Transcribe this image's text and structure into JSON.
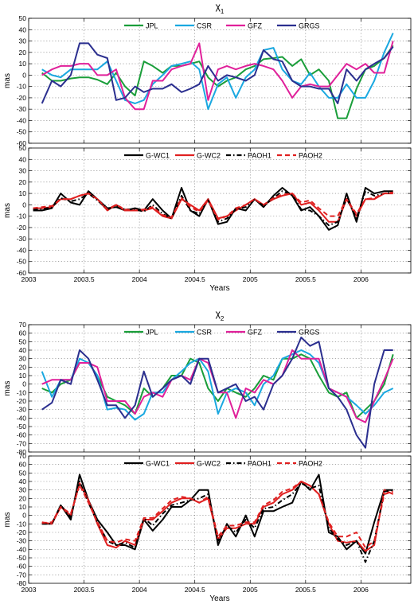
{
  "chart_data": [
    {
      "type": "line",
      "title": "χ1",
      "xlabel": "",
      "ylabel": "mas",
      "xlim": [
        2003.0,
        2006.45
      ],
      "ylim": [
        -60,
        50
      ],
      "yticks": [
        -60,
        -50,
        -40,
        -30,
        -20,
        -10,
        0,
        10,
        20,
        30,
        40,
        50
      ],
      "xticks": [
        2003,
        2003.5,
        2004,
        2004.5,
        2005,
        2005.5,
        2006
      ],
      "xticklabels": [
        "2003",
        "2003.5",
        "2004",
        "2004.5",
        "2005",
        "2005.5",
        "2006"
      ],
      "show_xticklabels": false,
      "grid": true,
      "legend": "top",
      "x": [
        2003.12,
        2003.21,
        2003.29,
        2003.38,
        2003.46,
        2003.54,
        2003.62,
        2003.71,
        2003.79,
        2003.87,
        2003.96,
        2004.04,
        2004.12,
        2004.21,
        2004.29,
        2004.38,
        2004.46,
        2004.54,
        2004.62,
        2004.71,
        2004.79,
        2004.87,
        2004.96,
        2005.04,
        2005.12,
        2005.21,
        2005.29,
        2005.38,
        2005.46,
        2005.54,
        2005.62,
        2005.71,
        2005.79,
        2005.87,
        2005.96,
        2006.04,
        2006.12,
        2006.21,
        2006.29
      ],
      "series": [
        {
          "name": "JPL",
          "color": "#1a9e3a",
          "dash": "",
          "values": [
            2,
            -5,
            -5,
            -3,
            -2,
            -2,
            -4,
            -8,
            2,
            -10,
            -18,
            12,
            8,
            2,
            8,
            8,
            10,
            12,
            -2,
            -10,
            -5,
            -2,
            5,
            8,
            14,
            15,
            16,
            8,
            14,
            0,
            5,
            -5,
            -38,
            -38,
            -12,
            5,
            8,
            15,
            26
          ]
        },
        {
          "name": "CSR",
          "color": "#1aa8e0",
          "dash": "",
          "values": [
            5,
            0,
            -2,
            5,
            5,
            5,
            5,
            12,
            -5,
            -22,
            -25,
            -22,
            -8,
            0,
            8,
            10,
            12,
            5,
            -30,
            -8,
            -2,
            -20,
            -2,
            5,
            22,
            24,
            5,
            -5,
            -8,
            2,
            -10,
            -20,
            -20,
            -8,
            -20,
            -20,
            -5,
            20,
            37
          ]
        },
        {
          "name": "GFZ",
          "color": "#e0209a",
          "dash": "",
          "values": [
            0,
            5,
            8,
            8,
            10,
            10,
            0,
            0,
            5,
            -20,
            -30,
            -30,
            -5,
            -5,
            5,
            8,
            10,
            28,
            -22,
            5,
            8,
            5,
            8,
            10,
            8,
            5,
            -5,
            -20,
            -10,
            -8,
            -10,
            -10,
            0,
            10,
            5,
            10,
            2,
            2,
            30
          ]
        },
        {
          "name": "GRGS",
          "color": "#2b2f8f",
          "dash": "",
          "values": [
            -25,
            -5,
            -10,
            0,
            28,
            28,
            18,
            15,
            -22,
            -20,
            -10,
            -15,
            -12,
            -12,
            -8,
            -15,
            -12,
            -8,
            8,
            -5,
            0,
            -2,
            -5,
            0,
            22,
            14,
            12,
            -5,
            -10,
            -10,
            -12,
            -12,
            -25,
            5,
            -5,
            5,
            10,
            15,
            25
          ]
        }
      ]
    },
    {
      "type": "line",
      "title": "",
      "xlabel": "Years",
      "ylabel": "mas",
      "xlim": [
        2003.0,
        2006.45
      ],
      "ylim": [
        -60,
        50
      ],
      "yticks": [
        -60,
        -50,
        -40,
        -30,
        -20,
        -10,
        0,
        10,
        20,
        30,
        40,
        50
      ],
      "xticks": [
        2003,
        2003.5,
        2004,
        2004.5,
        2005,
        2005.5,
        2006
      ],
      "xticklabels": [
        "2003",
        "2003.5",
        "2004",
        "2004.5",
        "2005",
        "2005.5",
        "2006"
      ],
      "show_xticklabels": true,
      "grid": true,
      "legend": "top",
      "x": [
        2003.04,
        2003.12,
        2003.21,
        2003.29,
        2003.38,
        2003.46,
        2003.54,
        2003.62,
        2003.71,
        2003.79,
        2003.87,
        2003.96,
        2004.04,
        2004.12,
        2004.21,
        2004.29,
        2004.38,
        2004.46,
        2004.54,
        2004.62,
        2004.71,
        2004.79,
        2004.87,
        2004.96,
        2005.04,
        2005.12,
        2005.21,
        2005.29,
        2005.38,
        2005.46,
        2005.54,
        2005.62,
        2005.71,
        2005.79,
        2005.87,
        2005.96,
        2006.04,
        2006.12,
        2006.21,
        2006.29
      ],
      "series": [
        {
          "name": "G-WC1",
          "color": "#000000",
          "dash": "",
          "values": [
            -5,
            -5,
            -3,
            10,
            2,
            0,
            12,
            5,
            -3,
            -2,
            -5,
            -3,
            -5,
            5,
            -5,
            -12,
            15,
            -5,
            -10,
            5,
            -17,
            -15,
            -3,
            -5,
            5,
            -2,
            8,
            15,
            8,
            -5,
            -2,
            -10,
            -22,
            -18,
            10,
            -15,
            15,
            10,
            12,
            12
          ]
        },
        {
          "name": "G-WC2",
          "color": "#e02020",
          "dash": "",
          "values": [
            -3,
            -3,
            -2,
            5,
            5,
            8,
            10,
            5,
            -5,
            0,
            -5,
            -5,
            -5,
            -3,
            -10,
            -12,
            5,
            0,
            -5,
            5,
            -12,
            -10,
            -5,
            0,
            5,
            0,
            5,
            8,
            10,
            0,
            2,
            -5,
            -15,
            -15,
            5,
            -10,
            5,
            5,
            10,
            10
          ]
        },
        {
          "name": "PAOH1",
          "color": "#000000",
          "dash": "6,3,1.5,3",
          "values": [
            -4,
            -4,
            -2,
            6,
            3,
            5,
            10,
            4,
            -4,
            -1,
            -4,
            -4,
            -6,
            0,
            -8,
            -12,
            8,
            -5,
            -8,
            4,
            -15,
            -12,
            -4,
            -2,
            5,
            -1,
            6,
            12,
            9,
            -4,
            -5,
            -10,
            -18,
            -15,
            6,
            -12,
            12,
            8,
            10,
            11
          ]
        },
        {
          "name": "PAOH2",
          "color": "#e02020",
          "dash": "6,4",
          "values": [
            -3,
            -2,
            -1,
            5,
            5,
            8,
            10,
            5,
            -4,
            0,
            -4,
            -5,
            -4,
            -2,
            -9,
            -11,
            6,
            -2,
            -6,
            4,
            -13,
            -10,
            -3,
            0,
            5,
            0,
            6,
            9,
            10,
            2,
            4,
            -3,
            -10,
            -10,
            5,
            -8,
            5,
            6,
            10,
            11
          ]
        }
      ]
    },
    {
      "type": "line",
      "title": "χ2",
      "xlabel": "",
      "ylabel": "mas",
      "xlim": [
        2003.0,
        2006.45
      ],
      "ylim": [
        -80,
        70
      ],
      "yticks": [
        -80,
        -70,
        -60,
        -50,
        -40,
        -30,
        -20,
        -10,
        0,
        10,
        20,
        30,
        40,
        50,
        60,
        70
      ],
      "xticks": [
        2003,
        2003.5,
        2004,
        2004.5,
        2005,
        2005.5,
        2006
      ],
      "xticklabels": [
        "2003",
        "2003.5",
        "2004",
        "2004.5",
        "2005",
        "2005.5",
        "2006"
      ],
      "show_xticklabels": false,
      "grid": true,
      "legend": "top",
      "x": [
        2003.12,
        2003.21,
        2003.29,
        2003.38,
        2003.46,
        2003.54,
        2003.62,
        2003.71,
        2003.79,
        2003.87,
        2003.96,
        2004.04,
        2004.12,
        2004.21,
        2004.29,
        2004.38,
        2004.46,
        2004.54,
        2004.62,
        2004.71,
        2004.79,
        2004.87,
        2004.96,
        2005.04,
        2005.12,
        2005.21,
        2005.29,
        2005.38,
        2005.46,
        2005.54,
        2005.62,
        2005.71,
        2005.79,
        2005.87,
        2005.96,
        2006.04,
        2006.12,
        2006.21,
        2006.29
      ],
      "series": [
        {
          "name": "JPL",
          "color": "#1a9e3a",
          "dash": "",
          "values": [
            -5,
            -10,
            0,
            5,
            25,
            25,
            10,
            -15,
            -20,
            -25,
            -35,
            -5,
            -15,
            -5,
            10,
            10,
            30,
            25,
            -5,
            -20,
            -5,
            -10,
            -15,
            -5,
            10,
            5,
            30,
            30,
            35,
            30,
            10,
            -10,
            -15,
            -10,
            -40,
            -30,
            -20,
            0,
            35
          ]
        },
        {
          "name": "CSR",
          "color": "#1aa8e0",
          "dash": "",
          "values": [
            15,
            -15,
            5,
            5,
            30,
            25,
            10,
            -30,
            -28,
            -30,
            -42,
            -35,
            -10,
            -10,
            5,
            15,
            25,
            30,
            15,
            -35,
            -10,
            -5,
            -10,
            -25,
            0,
            10,
            30,
            35,
            40,
            35,
            25,
            -5,
            -10,
            -15,
            -25,
            -35,
            -25,
            -10,
            -5
          ]
        },
        {
          "name": "GFZ",
          "color": "#e0209a",
          "dash": "",
          "values": [
            0,
            5,
            5,
            5,
            25,
            25,
            20,
            -20,
            -20,
            -20,
            -35,
            -15,
            -10,
            -15,
            5,
            10,
            5,
            30,
            25,
            -10,
            -10,
            -40,
            -5,
            -10,
            5,
            0,
            10,
            40,
            30,
            30,
            30,
            -5,
            -10,
            -15,
            -40,
            -45,
            -20,
            5,
            30
          ]
        },
        {
          "name": "GRGS",
          "color": "#2b2f8f",
          "dash": "",
          "values": [
            -30,
            -22,
            5,
            0,
            40,
            30,
            5,
            -25,
            -25,
            -40,
            -25,
            15,
            -15,
            -5,
            5,
            10,
            0,
            30,
            30,
            -10,
            -5,
            0,
            -20,
            -15,
            -30,
            0,
            10,
            30,
            55,
            45,
            50,
            -5,
            -15,
            -30,
            -60,
            -75,
            0,
            40,
            40
          ]
        }
      ]
    },
    {
      "type": "line",
      "title": "",
      "xlabel": "Years",
      "ylabel": "mas",
      "xlim": [
        2003.0,
        2006.45
      ],
      "ylim": [
        -80,
        70
      ],
      "yticks": [
        -80,
        -70,
        -60,
        -50,
        -40,
        -30,
        -20,
        -10,
        0,
        10,
        20,
        30,
        40,
        50,
        60,
        70
      ],
      "xticks": [
        2003,
        2003.5,
        2004,
        2004.5,
        2005,
        2005.5,
        2006
      ],
      "xticklabels": [
        "2003",
        "2003.5",
        "2004",
        "2004.5",
        "2005",
        "2005.5",
        "2006"
      ],
      "show_xticklabels": true,
      "grid": true,
      "legend": "top",
      "x": [
        2003.12,
        2003.21,
        2003.29,
        2003.38,
        2003.46,
        2003.54,
        2003.62,
        2003.71,
        2003.79,
        2003.87,
        2003.96,
        2004.04,
        2004.12,
        2004.21,
        2004.29,
        2004.38,
        2004.46,
        2004.54,
        2004.62,
        2004.71,
        2004.79,
        2004.87,
        2004.96,
        2005.04,
        2005.12,
        2005.21,
        2005.29,
        2005.38,
        2005.46,
        2005.54,
        2005.62,
        2005.71,
        2005.79,
        2005.87,
        2005.96,
        2006.04,
        2006.12,
        2006.21,
        2006.29
      ],
      "series": [
        {
          "name": "G-WC1",
          "color": "#000000",
          "dash": "",
          "values": [
            -10,
            -10,
            12,
            -5,
            48,
            18,
            -5,
            -20,
            -35,
            -35,
            -40,
            -5,
            -18,
            -5,
            10,
            10,
            18,
            30,
            30,
            -35,
            -10,
            -25,
            0,
            -25,
            5,
            5,
            10,
            15,
            40,
            30,
            48,
            -20,
            -25,
            -40,
            -30,
            -45,
            -8,
            30,
            30
          ]
        },
        {
          "name": "G-WC2",
          "color": "#e02020",
          "dash": "",
          "values": [
            -8,
            -10,
            10,
            0,
            38,
            18,
            -10,
            -35,
            -38,
            -30,
            -35,
            -5,
            -5,
            5,
            15,
            20,
            20,
            15,
            20,
            -28,
            -15,
            -15,
            -10,
            -10,
            10,
            15,
            25,
            30,
            40,
            35,
            25,
            -10,
            -30,
            -32,
            -30,
            -42,
            -35,
            30,
            25
          ]
        },
        {
          "name": "PAOH1",
          "color": "#000000",
          "dash": "6,3,1.5,3",
          "values": [
            -10,
            -10,
            12,
            -2,
            40,
            15,
            -8,
            -30,
            -35,
            -32,
            -38,
            -3,
            -12,
            2,
            12,
            15,
            18,
            20,
            25,
            -30,
            -12,
            -20,
            -5,
            -15,
            8,
            10,
            18,
            25,
            38,
            32,
            35,
            -15,
            -28,
            -35,
            -30,
            -55,
            -30,
            28,
            30
          ]
        },
        {
          "name": "PAOH2",
          "color": "#e02020",
          "dash": "6,4",
          "values": [
            -9,
            -8,
            10,
            2,
            36,
            15,
            -8,
            -30,
            -32,
            -28,
            -30,
            -3,
            -3,
            8,
            18,
            22,
            20,
            15,
            22,
            -25,
            -12,
            -12,
            -8,
            -8,
            12,
            18,
            28,
            32,
            40,
            35,
            25,
            -8,
            -25,
            -25,
            -20,
            -38,
            -30,
            25,
            28
          ]
        }
      ]
    }
  ]
}
